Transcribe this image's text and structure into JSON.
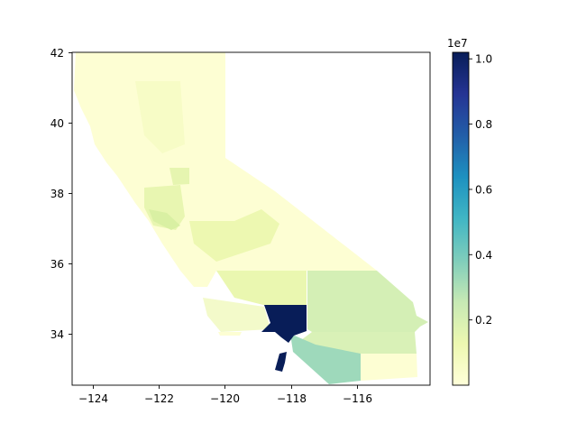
{
  "chart_data": {
    "type": "heatmap",
    "title": "",
    "xlabel": "",
    "ylabel": "",
    "xlim": [
      -124.4,
      -114.1
    ],
    "ylim": [
      32.5,
      42.0
    ],
    "x_ticks": [
      -124,
      -122,
      -120,
      -118,
      -116
    ],
    "x_tick_labels": [
      "−124",
      "−122",
      "−120",
      "−118",
      "−116"
    ],
    "y_ticks": [
      34,
      36,
      38,
      40,
      42
    ],
    "y_tick_labels": [
      "34",
      "36",
      "38",
      "40",
      "42"
    ],
    "grid": false,
    "colormap": "YlGnBu",
    "colorbar": {
      "min": 0,
      "max": 10200000,
      "ticks": [
        0.2,
        0.4,
        0.6,
        0.8,
        1.0
      ],
      "tick_labels": [
        "0.2",
        "0.4",
        "0.6",
        "0.8",
        "1.0"
      ],
      "offset_label": "1e7",
      "colors": [
        "#ffffd9",
        "#edf8b1",
        "#c7e9b4",
        "#7fcdbb",
        "#41b6c4",
        "#1d91c0",
        "#225ea8",
        "#253494",
        "#081d58"
      ]
    },
    "regions": [
      {
        "value": 10000000
      },
      {
        "value": 3100000
      },
      {
        "value": 2200000
      },
      {
        "value": 2100000
      },
      {
        "value": 1500000
      },
      {
        "value": 900000
      },
      {
        "value": 700000
      },
      {
        "value": 250000
      },
      {
        "value": 120000
      },
      {
        "value": 50000
      }
    ]
  }
}
